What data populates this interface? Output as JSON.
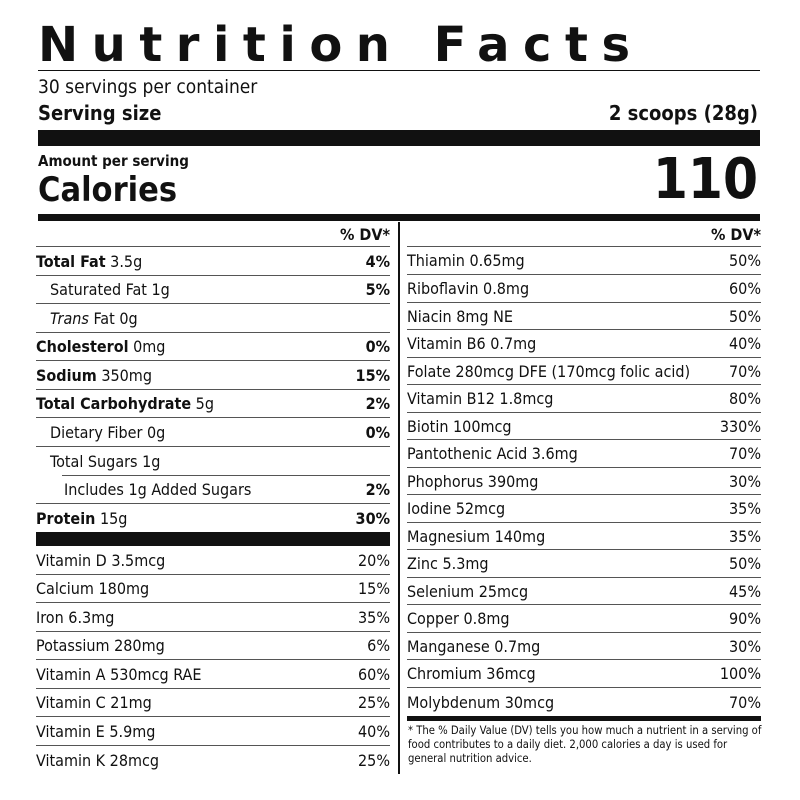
{
  "title": "Nutrition Facts",
  "servings_per_container": "30 servings per container",
  "serving_size": {
    "label": "Serving size",
    "value": "2 scoops (28g)"
  },
  "amount_per_serving": "Amount per serving",
  "calories": {
    "label": "Calories",
    "value": "110"
  },
  "dv_header": "% DV*",
  "left": {
    "macros": [
      {
        "name": "Total Fat",
        "amount": " 3.5g",
        "dv": "4%"
      },
      {
        "name": "Saturated Fat 1g",
        "dv": "5%"
      },
      {
        "name": "Trans",
        "amount": " Fat 0g",
        "dv": ""
      },
      {
        "name": "Cholesterol",
        "amount": " 0mg",
        "dv": "0%"
      },
      {
        "name": "Sodium",
        "amount": " 350mg",
        "dv": "15%"
      },
      {
        "name": "Total Carbohydrate",
        "amount": " 5g",
        "dv": "2%"
      },
      {
        "name": "Dietary Fiber 0g",
        "dv": "0%"
      },
      {
        "name": "Total Sugars 1g",
        "dv": ""
      },
      {
        "name": "Includes 1g Added Sugars",
        "dv": "2%"
      },
      {
        "name": "Protein",
        "amount": " 15g",
        "dv": "30%"
      }
    ],
    "vitamins": [
      {
        "name": "Vitamin D 3.5mcg",
        "dv": "20%"
      },
      {
        "name": "Calcium 180mg",
        "dv": "15%"
      },
      {
        "name": "Iron 6.3mg",
        "dv": "35%"
      },
      {
        "name": "Potassium 280mg",
        "dv": "6%"
      },
      {
        "name": "Vitamin A 530mcg RAE",
        "dv": "60%"
      },
      {
        "name": "Vitamin C 21mg",
        "dv": "25%"
      },
      {
        "name": "Vitamin E 5.9mg",
        "dv": "40%"
      },
      {
        "name": "Vitamin K 28mcg",
        "dv": "25%"
      }
    ]
  },
  "right": {
    "nutrients": [
      {
        "name": "Thiamin 0.65mg",
        "dv": "50%"
      },
      {
        "name": "Riboflavin 0.8mg",
        "dv": "60%"
      },
      {
        "name": "Niacin 8mg NE",
        "dv": "50%"
      },
      {
        "name": "Vitamin B6 0.7mg",
        "dv": "40%"
      },
      {
        "name": "Folate 280mcg DFE (170mcg folic acid)",
        "dv": "70%"
      },
      {
        "name": "Vitamin B12 1.8mcg",
        "dv": "80%"
      },
      {
        "name": "Biotin 100mcg",
        "dv": "330%"
      },
      {
        "name": "Pantothenic Acid 3.6mg",
        "dv": "70%"
      },
      {
        "name": "Phophorus 390mg",
        "dv": "30%"
      },
      {
        "name": "Iodine 52mcg",
        "dv": "35%"
      },
      {
        "name": "Magnesium 140mg",
        "dv": "35%"
      },
      {
        "name": "Zinc 5.3mg",
        "dv": "50%"
      },
      {
        "name": "Selenium 25mcg",
        "dv": "45%"
      },
      {
        "name": "Copper 0.8mg",
        "dv": "90%"
      },
      {
        "name": "Manganese 0.7mg",
        "dv": "30%"
      },
      {
        "name": "Chromium 36mcg",
        "dv": "100%"
      },
      {
        "name": "Molybdenum 30mcg",
        "dv": "70%"
      }
    ]
  },
  "footnote": "* The % Daily Value (DV) tells you how much a nutrient in a serving of food contributes to a daily diet. 2,000 calories a day is used for general nutrition advice."
}
